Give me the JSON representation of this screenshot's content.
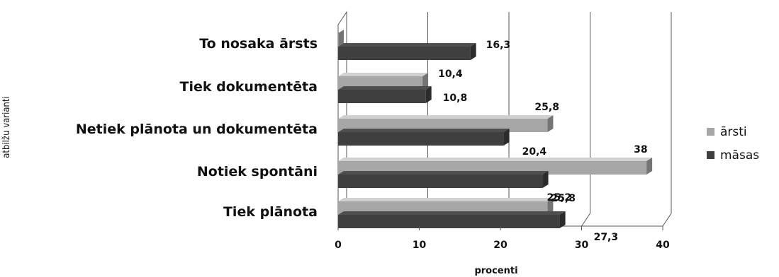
{
  "chart_data": {
    "type": "bar",
    "orientation": "horizontal",
    "categories": [
      "To nosaka ārsts",
      "Tiek dokumentēta",
      "Netiek plānota un dokumentēta",
      "Notiek spontāni",
      "Tiek plānota"
    ],
    "series": [
      {
        "name": "ārsti",
        "values": [
          0,
          10.4,
          25.8,
          38,
          25.8
        ],
        "labels": [
          "",
          "10,4",
          "25,8",
          "38",
          "25,8"
        ],
        "color": "#a6a6a6"
      },
      {
        "name": "māsas",
        "values": [
          16.3,
          10.8,
          20.4,
          25.2,
          27.3
        ],
        "labels": [
          "16,3",
          "10,8",
          "20,4",
          "25,2",
          "27,3"
        ],
        "color": "#3f3f3f"
      }
    ],
    "xlabel": "procenti",
    "ylabel": "atbilžu varianti",
    "xlim": [
      0,
      40
    ],
    "xticks": [
      "0",
      "10",
      "20",
      "30",
      "40"
    ],
    "grid": true,
    "legend": "right"
  }
}
